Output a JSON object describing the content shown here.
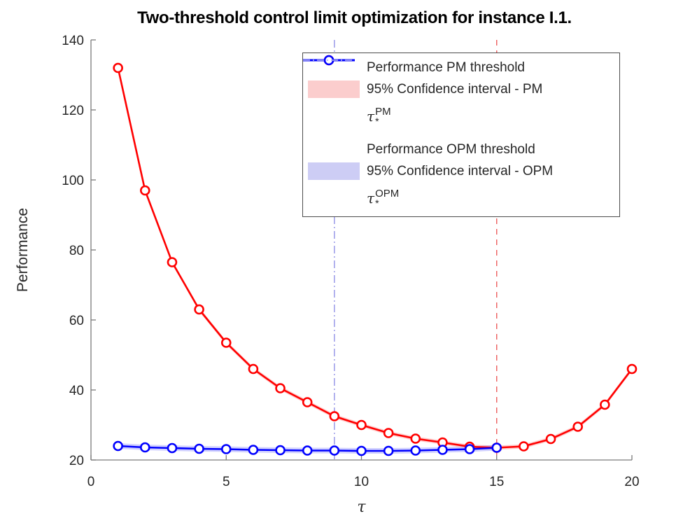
{
  "chart_data": {
    "type": "line",
    "title": "Two-threshold control limit optimization for instance I.1.",
    "xlabel": "τ",
    "ylabel": "Performance",
    "xlim": [
      0,
      20
    ],
    "ylim": [
      20,
      140
    ],
    "xticks": [
      0,
      5,
      10,
      15,
      20
    ],
    "yticks": [
      20,
      40,
      60,
      80,
      100,
      120,
      140
    ],
    "grid": false,
    "legend_position": "upper center",
    "axis_color": "#7a7a7a",
    "tick_label_color": "#262626",
    "series": [
      {
        "name": "Performance PM threshold",
        "color": "#ff0000",
        "marker": "circle",
        "line_style": "solid",
        "x": [
          1,
          2,
          3,
          4,
          5,
          6,
          7,
          8,
          9,
          10,
          11,
          12,
          13,
          14,
          15,
          16,
          17,
          18,
          19,
          20
        ],
        "y": [
          132,
          97,
          76.5,
          63,
          53.5,
          46,
          40.5,
          36.5,
          32.5,
          30,
          27.7,
          26.1,
          25,
          23.8,
          23.5,
          23.9,
          26,
          29.5,
          35.8,
          46
        ],
        "ci_halfwidth": 0.6,
        "ci_color": "rgba(255,0,0,0.18)"
      },
      {
        "name": "Performance OPM threshold",
        "color": "#0000ff",
        "marker": "circle",
        "line_style": "solid",
        "x": [
          1,
          2,
          3,
          4,
          5,
          6,
          7,
          8,
          9,
          10,
          11,
          12,
          13,
          14,
          15
        ],
        "y": [
          24,
          23.6,
          23.4,
          23.2,
          23.1,
          22.9,
          22.8,
          22.7,
          22.7,
          22.6,
          22.6,
          22.7,
          22.9,
          23.1,
          23.5
        ],
        "ci_halfwidth": 0.8,
        "ci_color": "rgba(0,0,255,0.18)"
      }
    ],
    "vlines": [
      {
        "x": 15,
        "style": "dashed",
        "color": "#ee6666",
        "meaning": "optimal PM threshold"
      },
      {
        "x": 9,
        "style": "dashdot",
        "color": "#9999e8",
        "meaning": "optimal OPM threshold"
      }
    ],
    "legend": [
      {
        "kind": "line-marker",
        "color": "#ff0000",
        "label": "Performance PM threshold"
      },
      {
        "kind": "patch",
        "color": "#fbcdcd",
        "label": "95% Confidence interval - PM"
      },
      {
        "kind": "dashed",
        "color": "#f4a9a9",
        "math": {
          "base": "τ",
          "sup": "PM",
          "sub": "*"
        }
      },
      {
        "kind": "spacer"
      },
      {
        "kind": "line-marker",
        "color": "#0000ff",
        "label": "Performance OPM threshold"
      },
      {
        "kind": "patch",
        "color": "#cdcdf5",
        "label": "95% Confidence interval - OPM"
      },
      {
        "kind": "dashdot",
        "color": "#aeaeee",
        "math": {
          "base": "τ",
          "sup": "OPM",
          "sub": "*"
        }
      }
    ]
  }
}
